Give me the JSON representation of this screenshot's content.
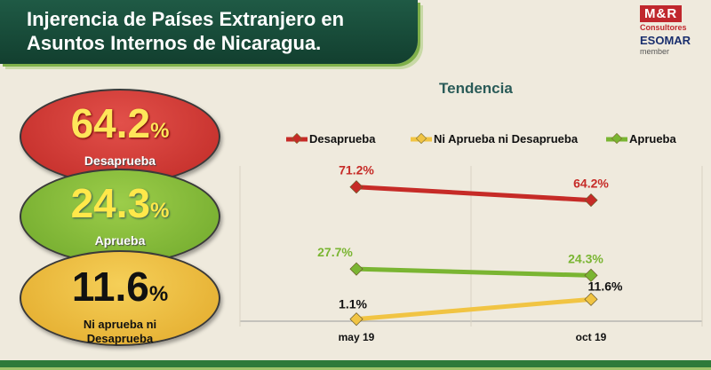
{
  "header": {
    "title": "Injerencia de Países Extranjero en\nAsuntos Internos de Nicaragua."
  },
  "logo": {
    "brand": "M&R",
    "sub": "Consultores",
    "esomar": "ESOMAR",
    "member": "member"
  },
  "summary": {
    "desaprueba": {
      "value": "64.2",
      "pct": "%",
      "label": "Desaprueba"
    },
    "aprueba": {
      "value": "24.3",
      "pct": "%",
      "label": "Aprueba"
    },
    "ni": {
      "value": "11.6",
      "pct": "%",
      "label": "Ni aprueba ni\nDesaprueba"
    }
  },
  "chart_data": {
    "type": "line",
    "title": "Tendencia",
    "x": [
      "may 19",
      "oct 19"
    ],
    "series": [
      {
        "name": "Desaprueba",
        "values": [
          71.2,
          64.2
        ],
        "labels": [
          "71.2%",
          "64.2%"
        ],
        "color": "#c62b27"
      },
      {
        "name": "Ni Aprueba ni Desaprueba",
        "values": [
          1.1,
          11.6
        ],
        "labels": [
          "1.1%",
          "11.6%"
        ],
        "color": "#f1c443"
      },
      {
        "name": "Aprueba",
        "values": [
          27.7,
          24.3
        ],
        "labels": [
          "27.7%",
          "24.3%"
        ],
        "color": "#7ab532"
      }
    ],
    "ylim": [
      0,
      80
    ],
    "grid": "vertical",
    "legend": "top"
  }
}
